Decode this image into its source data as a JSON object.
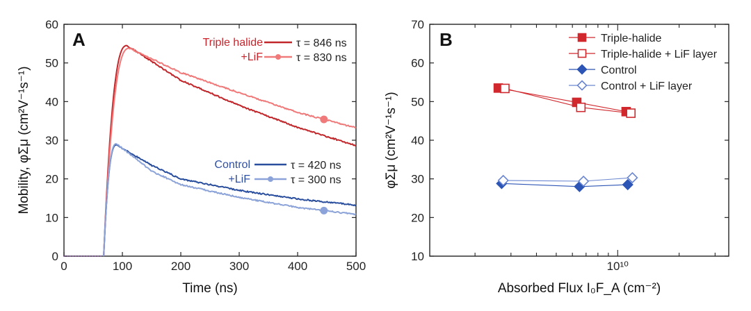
{
  "chart_data": [
    {
      "panel": "A",
      "type": "line",
      "xlabel": "Time (ns)",
      "ylabel": "Mobility, φΣμ (cm²V⁻¹s⁻¹)",
      "xlim": [
        0,
        500
      ],
      "ylim": [
        0,
        60
      ],
      "xticks": [
        0,
        100,
        200,
        300,
        400,
        500
      ],
      "yticks": [
        0,
        10,
        20,
        30,
        40,
        50,
        60
      ],
      "group_labels": [
        {
          "lines": [
            "Triple halide",
            "+LiF"
          ],
          "color": "#c8242b"
        },
        {
          "lines": [
            "Control",
            "+LiF"
          ],
          "color": "#2f4fa3"
        }
      ],
      "series": [
        {
          "name": "τ = 846 ns",
          "color": "#c0262a",
          "marker": "none",
          "peak_time": 108,
          "peak": 54.5,
          "tau": 846
        },
        {
          "name": "τ = 830 ns",
          "color": "#f07a7a",
          "marker": "circle",
          "peak_time": 112,
          "peak": 53.8,
          "tau": 830,
          "marker_x": 445
        },
        {
          "name": "τ = 420 ns",
          "color": "#2a4e9e",
          "marker": "none",
          "peak_time": 90,
          "peak": 28.8,
          "tau": 420
        },
        {
          "name": "τ = 300 ns",
          "color": "#8ba3d8",
          "marker": "circle",
          "peak_time": 90,
          "peak": 29.1,
          "tau": 300,
          "marker_x": 445
        }
      ],
      "annotation_legend_symbol": {
        "value": "35",
        "title": ""
      }
    },
    {
      "panel": "B",
      "type": "line",
      "xlabel": "Absorbed Flux I₀F_A (cm⁻²)",
      "ylabel": "φΣμ (cm²V⁻¹s⁻¹)",
      "xscale": "log",
      "xlim": [
        1200000000.0,
        35000000000.0
      ],
      "ylim": [
        10,
        70
      ],
      "xtick_label": "10¹⁰",
      "yticks": [
        10,
        20,
        30,
        40,
        50,
        60,
        70
      ],
      "legend_position": "top-right",
      "series": [
        {
          "name": "Triple-halide",
          "color": "#d0282d",
          "marker": "square-filled",
          "x": [
            2600000000.0,
            6300000000.0,
            11000000000.0
          ],
          "y": [
            53.5,
            49.8,
            47.4
          ]
        },
        {
          "name": "Triple-halide + LiF layer",
          "color": "#d0282d",
          "marker": "square-open",
          "x": [
            2800000000.0,
            6600000000.0,
            11600000000.0
          ],
          "y": [
            53.4,
            48.5,
            47.0
          ]
        },
        {
          "name": "Control",
          "color": "#2c55b5",
          "marker": "diamond-filled",
          "x": [
            2700000000.0,
            6500000000.0,
            11200000000.0
          ],
          "y": [
            28.8,
            28.0,
            28.5
          ]
        },
        {
          "name": "Control + LiF layer",
          "color": "#6a86d0",
          "marker": "diamond-open",
          "x": [
            2750000000.0,
            6800000000.0,
            11800000000.0
          ],
          "y": [
            29.6,
            29.4,
            30.3
          ]
        }
      ]
    }
  ]
}
